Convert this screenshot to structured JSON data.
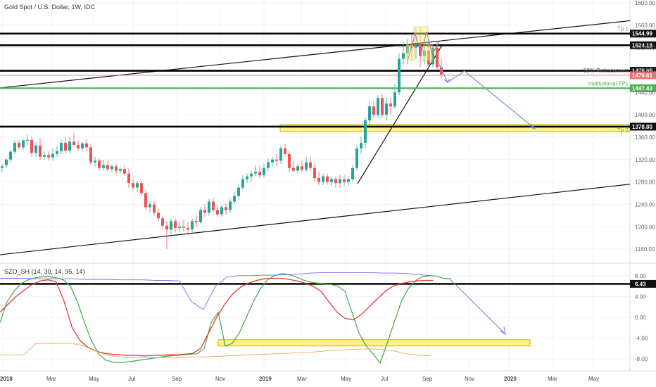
{
  "chart_data": {
    "type": "candlestick",
    "title": "Gold Spot / U.S. Dollar, 1W, IDC",
    "ylim": [
      1140,
      1605
    ],
    "yticks": [
      1160,
      1200,
      1240,
      1280,
      1320,
      1360,
      1400,
      1440,
      1480,
      1520,
      1560,
      1600
    ],
    "x_ticks": [
      "2018",
      "Mar",
      "May",
      "Jul",
      "Sep",
      "Nov",
      "2019",
      "Mar",
      "May",
      "Jul",
      "Sep",
      "Nov",
      "2020",
      "Mar",
      "May"
    ],
    "candles": [
      {
        "o": 1305,
        "h": 1312,
        "l": 1298,
        "c": 1308
      },
      {
        "o": 1310,
        "h": 1323,
        "l": 1305,
        "c": 1320
      },
      {
        "o": 1320,
        "h": 1338,
        "l": 1315,
        "c": 1334
      },
      {
        "o": 1334,
        "h": 1355,
        "l": 1330,
        "c": 1350
      },
      {
        "o": 1350,
        "h": 1356,
        "l": 1338,
        "c": 1342
      },
      {
        "o": 1342,
        "h": 1358,
        "l": 1338,
        "c": 1354
      },
      {
        "o": 1354,
        "h": 1365,
        "l": 1345,
        "c": 1355
      },
      {
        "o": 1355,
        "h": 1362,
        "l": 1325,
        "c": 1332
      },
      {
        "o": 1332,
        "h": 1350,
        "l": 1325,
        "c": 1345
      },
      {
        "o": 1345,
        "h": 1358,
        "l": 1320,
        "c": 1325
      },
      {
        "o": 1325,
        "h": 1335,
        "l": 1320,
        "c": 1328
      },
      {
        "o": 1328,
        "h": 1335,
        "l": 1318,
        "c": 1324
      },
      {
        "o": 1324,
        "h": 1340,
        "l": 1318,
        "c": 1330
      },
      {
        "o": 1330,
        "h": 1345,
        "l": 1325,
        "c": 1335
      },
      {
        "o": 1335,
        "h": 1355,
        "l": 1330,
        "c": 1350
      },
      {
        "o": 1350,
        "h": 1360,
        "l": 1330,
        "c": 1336
      },
      {
        "o": 1336,
        "h": 1360,
        "l": 1332,
        "c": 1352
      },
      {
        "o": 1352,
        "h": 1368,
        "l": 1345,
        "c": 1346
      },
      {
        "o": 1346,
        "h": 1354,
        "l": 1335,
        "c": 1340
      },
      {
        "o": 1340,
        "h": 1352,
        "l": 1334,
        "c": 1349
      },
      {
        "o": 1349,
        "h": 1356,
        "l": 1335,
        "c": 1342
      },
      {
        "o": 1342,
        "h": 1348,
        "l": 1310,
        "c": 1315
      },
      {
        "o": 1315,
        "h": 1325,
        "l": 1308,
        "c": 1318
      },
      {
        "o": 1318,
        "h": 1322,
        "l": 1300,
        "c": 1305
      },
      {
        "o": 1305,
        "h": 1318,
        "l": 1300,
        "c": 1310
      },
      {
        "o": 1310,
        "h": 1318,
        "l": 1300,
        "c": 1303
      },
      {
        "o": 1303,
        "h": 1312,
        "l": 1298,
        "c": 1308
      },
      {
        "o": 1308,
        "h": 1312,
        "l": 1294,
        "c": 1300
      },
      {
        "o": 1300,
        "h": 1306,
        "l": 1296,
        "c": 1303
      },
      {
        "o": 1303,
        "h": 1308,
        "l": 1291,
        "c": 1295
      },
      {
        "o": 1295,
        "h": 1304,
        "l": 1270,
        "c": 1278
      },
      {
        "o": 1278,
        "h": 1285,
        "l": 1265,
        "c": 1270
      },
      {
        "o": 1270,
        "h": 1282,
        "l": 1262,
        "c": 1278
      },
      {
        "o": 1278,
        "h": 1282,
        "l": 1255,
        "c": 1260
      },
      {
        "o": 1260,
        "h": 1266,
        "l": 1230,
        "c": 1235
      },
      {
        "o": 1235,
        "h": 1245,
        "l": 1225,
        "c": 1240
      },
      {
        "o": 1240,
        "h": 1246,
        "l": 1220,
        "c": 1225
      },
      {
        "o": 1225,
        "h": 1232,
        "l": 1210,
        "c": 1215
      },
      {
        "o": 1215,
        "h": 1220,
        "l": 1195,
        "c": 1202
      },
      {
        "o": 1202,
        "h": 1210,
        "l": 1160,
        "c": 1195
      },
      {
        "o": 1195,
        "h": 1215,
        "l": 1185,
        "c": 1210
      },
      {
        "o": 1210,
        "h": 1215,
        "l": 1190,
        "c": 1198
      },
      {
        "o": 1198,
        "h": 1208,
        "l": 1190,
        "c": 1200
      },
      {
        "o": 1200,
        "h": 1212,
        "l": 1192,
        "c": 1198
      },
      {
        "o": 1198,
        "h": 1208,
        "l": 1185,
        "c": 1195
      },
      {
        "o": 1195,
        "h": 1215,
        "l": 1188,
        "c": 1210
      },
      {
        "o": 1210,
        "h": 1220,
        "l": 1200,
        "c": 1208
      },
      {
        "o": 1208,
        "h": 1235,
        "l": 1205,
        "c": 1230
      },
      {
        "o": 1230,
        "h": 1240,
        "l": 1218,
        "c": 1225
      },
      {
        "o": 1225,
        "h": 1250,
        "l": 1220,
        "c": 1245
      },
      {
        "o": 1245,
        "h": 1252,
        "l": 1226,
        "c": 1230
      },
      {
        "o": 1230,
        "h": 1238,
        "l": 1218,
        "c": 1222
      },
      {
        "o": 1222,
        "h": 1240,
        "l": 1218,
        "c": 1235
      },
      {
        "o": 1235,
        "h": 1242,
        "l": 1222,
        "c": 1230
      },
      {
        "o": 1230,
        "h": 1250,
        "l": 1225,
        "c": 1245
      },
      {
        "o": 1245,
        "h": 1262,
        "l": 1240,
        "c": 1255
      },
      {
        "o": 1255,
        "h": 1275,
        "l": 1248,
        "c": 1270
      },
      {
        "o": 1270,
        "h": 1292,
        "l": 1265,
        "c": 1285
      },
      {
        "o": 1285,
        "h": 1295,
        "l": 1278,
        "c": 1290
      },
      {
        "o": 1290,
        "h": 1300,
        "l": 1280,
        "c": 1295
      },
      {
        "o": 1295,
        "h": 1310,
        "l": 1290,
        "c": 1298
      },
      {
        "o": 1298,
        "h": 1310,
        "l": 1286,
        "c": 1292
      },
      {
        "o": 1292,
        "h": 1312,
        "l": 1288,
        "c": 1305
      },
      {
        "o": 1305,
        "h": 1322,
        "l": 1300,
        "c": 1315
      },
      {
        "o": 1315,
        "h": 1325,
        "l": 1308,
        "c": 1320
      },
      {
        "o": 1320,
        "h": 1330,
        "l": 1308,
        "c": 1318
      },
      {
        "o": 1318,
        "h": 1345,
        "l": 1312,
        "c": 1340
      },
      {
        "o": 1340,
        "h": 1348,
        "l": 1325,
        "c": 1330
      },
      {
        "o": 1330,
        "h": 1335,
        "l": 1298,
        "c": 1305
      },
      {
        "o": 1305,
        "h": 1318,
        "l": 1298,
        "c": 1300
      },
      {
        "o": 1300,
        "h": 1312,
        "l": 1295,
        "c": 1308
      },
      {
        "o": 1308,
        "h": 1318,
        "l": 1298,
        "c": 1302
      },
      {
        "o": 1302,
        "h": 1325,
        "l": 1298,
        "c": 1315
      },
      {
        "o": 1315,
        "h": 1325,
        "l": 1300,
        "c": 1305
      },
      {
        "o": 1305,
        "h": 1312,
        "l": 1282,
        "c": 1287
      },
      {
        "o": 1287,
        "h": 1298,
        "l": 1275,
        "c": 1280
      },
      {
        "o": 1280,
        "h": 1295,
        "l": 1275,
        "c": 1290
      },
      {
        "o": 1290,
        "h": 1295,
        "l": 1275,
        "c": 1280
      },
      {
        "o": 1280,
        "h": 1290,
        "l": 1272,
        "c": 1285
      },
      {
        "o": 1285,
        "h": 1290,
        "l": 1270,
        "c": 1278
      },
      {
        "o": 1278,
        "h": 1292,
        "l": 1270,
        "c": 1285
      },
      {
        "o": 1285,
        "h": 1292,
        "l": 1272,
        "c": 1280
      },
      {
        "o": 1280,
        "h": 1290,
        "l": 1272,
        "c": 1285
      },
      {
        "o": 1285,
        "h": 1310,
        "l": 1280,
        "c": 1305
      },
      {
        "o": 1305,
        "h": 1345,
        "l": 1300,
        "c": 1340
      },
      {
        "o": 1340,
        "h": 1360,
        "l": 1330,
        "c": 1350
      },
      {
        "o": 1350,
        "h": 1395,
        "l": 1340,
        "c": 1390
      },
      {
        "o": 1390,
        "h": 1425,
        "l": 1380,
        "c": 1415
      },
      {
        "o": 1415,
        "h": 1425,
        "l": 1395,
        "c": 1400
      },
      {
        "o": 1400,
        "h": 1435,
        "l": 1395,
        "c": 1430
      },
      {
        "o": 1430,
        "h": 1438,
        "l": 1395,
        "c": 1400
      },
      {
        "o": 1400,
        "h": 1430,
        "l": 1390,
        "c": 1420
      },
      {
        "o": 1420,
        "h": 1430,
        "l": 1400,
        "c": 1415
      },
      {
        "o": 1415,
        "h": 1455,
        "l": 1410,
        "c": 1440
      },
      {
        "o": 1440,
        "h": 1510,
        "l": 1435,
        "c": 1500
      },
      {
        "o": 1500,
        "h": 1530,
        "l": 1490,
        "c": 1510
      },
      {
        "o": 1510,
        "h": 1535,
        "l": 1490,
        "c": 1525
      },
      {
        "o": 1525,
        "h": 1545,
        "l": 1500,
        "c": 1520
      },
      {
        "o": 1520,
        "h": 1555,
        "l": 1500,
        "c": 1527
      },
      {
        "o": 1527,
        "h": 1557,
        "l": 1485,
        "c": 1505
      },
      {
        "o": 1505,
        "h": 1535,
        "l": 1490,
        "c": 1515
      },
      {
        "o": 1515,
        "h": 1530,
        "l": 1485,
        "c": 1490
      },
      {
        "o": 1490,
        "h": 1525,
        "l": 1485,
        "c": 1520
      },
      {
        "o": 1520,
        "h": 1530,
        "l": 1480,
        "c": 1485
      },
      {
        "o": 1485,
        "h": 1500,
        "l": 1465,
        "c": 1472
      }
    ],
    "horizontal_levels": [
      {
        "value": 1544.99,
        "label": "1544.99",
        "note": "Tp 1",
        "color": "#000000"
      },
      {
        "value": 1524.18,
        "label": "1524.18",
        "note": "",
        "color": "#000000"
      },
      {
        "value": 1478.65,
        "label": "1478.65",
        "note": "",
        "color": "#000000"
      },
      {
        "value": 1470.61,
        "label": "1470.61",
        "note": "50% Retracement",
        "color": "#e57373"
      },
      {
        "value": 1447.43,
        "label": "1447.43",
        "note": "Institutional TP1",
        "color": "#4caf50"
      },
      {
        "value": 1378.8,
        "label": "1378.80",
        "note": "Tp 2",
        "color": "#000000"
      }
    ],
    "indicator": {
      "name": "SZO_SH (14, 30, 14, 95, 14)",
      "ylim": [
        -10,
        10
      ],
      "yticks": [
        8.0,
        4.0,
        0.0,
        -4.0,
        -8.0
      ],
      "level": {
        "value": 6.43,
        "label": "6.43"
      },
      "series": [
        {
          "color": "#4caf50",
          "values": [
            -1,
            3,
            5,
            6.5,
            7.2,
            7.6,
            7.8,
            7.8,
            7.6,
            7.2,
            6,
            3,
            -1,
            -4.5,
            -7,
            -8.2,
            -8.6,
            -8.7,
            -8.6,
            -8.4,
            -8.2,
            -8,
            -7.8,
            -7.6,
            -7.4,
            -7.3,
            -7.2,
            -7.1,
            -7,
            -6,
            -1,
            1,
            -5.5,
            -5,
            -3,
            0,
            3,
            5.5,
            7.2,
            8,
            8.4,
            8.2,
            7.8,
            7.2,
            6.8,
            6.6,
            6.4,
            6.3,
            6,
            5,
            1,
            -3,
            -5.5,
            -7,
            -8.8,
            -5,
            -1,
            3,
            5.5,
            7,
            7.8,
            8,
            7.9,
            7.5,
            7.4
          ]
        },
        {
          "color": "#e53935",
          "values": [
            1,
            2.5,
            4,
            5.2,
            6.3,
            7,
            7.2,
            6.8,
            3,
            -2,
            -4.5,
            -5.8,
            -6.5,
            -6.9,
            -7.1,
            -7.2,
            -7.3,
            -7.3,
            -7.4,
            -7.3,
            -7.3,
            -7.2,
            -7.2,
            -7.1,
            -6.9,
            -6,
            -3,
            0,
            2.5,
            4.5,
            5.8,
            6.6,
            7.1,
            7.4,
            7.5,
            7.5,
            7.3,
            7,
            6.6,
            6,
            5,
            3,
            1,
            -0.2,
            -0.5,
            0.5,
            2,
            3.5,
            5,
            6,
            6.5,
            6.8,
            7,
            7.1,
            7.1
          ]
        },
        {
          "color": "#7b68ee",
          "values": [
            7.5,
            7.5,
            7.5,
            7.4,
            7.4,
            7.4,
            7.4,
            7.3,
            7.3,
            7.3,
            7.2,
            7.2,
            7.2,
            7.1,
            7.1,
            7,
            3,
            1.5,
            6,
            7.8,
            8,
            8,
            8.1,
            8.1,
            8.2,
            8.3,
            8.5,
            8.6,
            8.6,
            8.6,
            8.6,
            8.6,
            8.5,
            8.5,
            8.4,
            8.2,
            8
          ]
        },
        {
          "color": "#f5a55a",
          "values": [
            -7.2,
            -7.2,
            -7.2,
            -5,
            -5,
            -5,
            -5,
            -5.5,
            -6.5,
            -7.3,
            -7.6,
            -7.7,
            -7.7,
            -7.7,
            -7.7,
            -7.7,
            -7.6,
            -7.6,
            -7.5,
            -7.4,
            -7.3,
            -7.2,
            -7.1,
            -7,
            -6.9,
            -6.8,
            -6.7,
            -6.5,
            -6.3,
            -6.2,
            -6.1,
            -6.1,
            -6.2,
            -6.5,
            -7,
            -7.3,
            -7.4
          ]
        }
      ]
    }
  }
}
